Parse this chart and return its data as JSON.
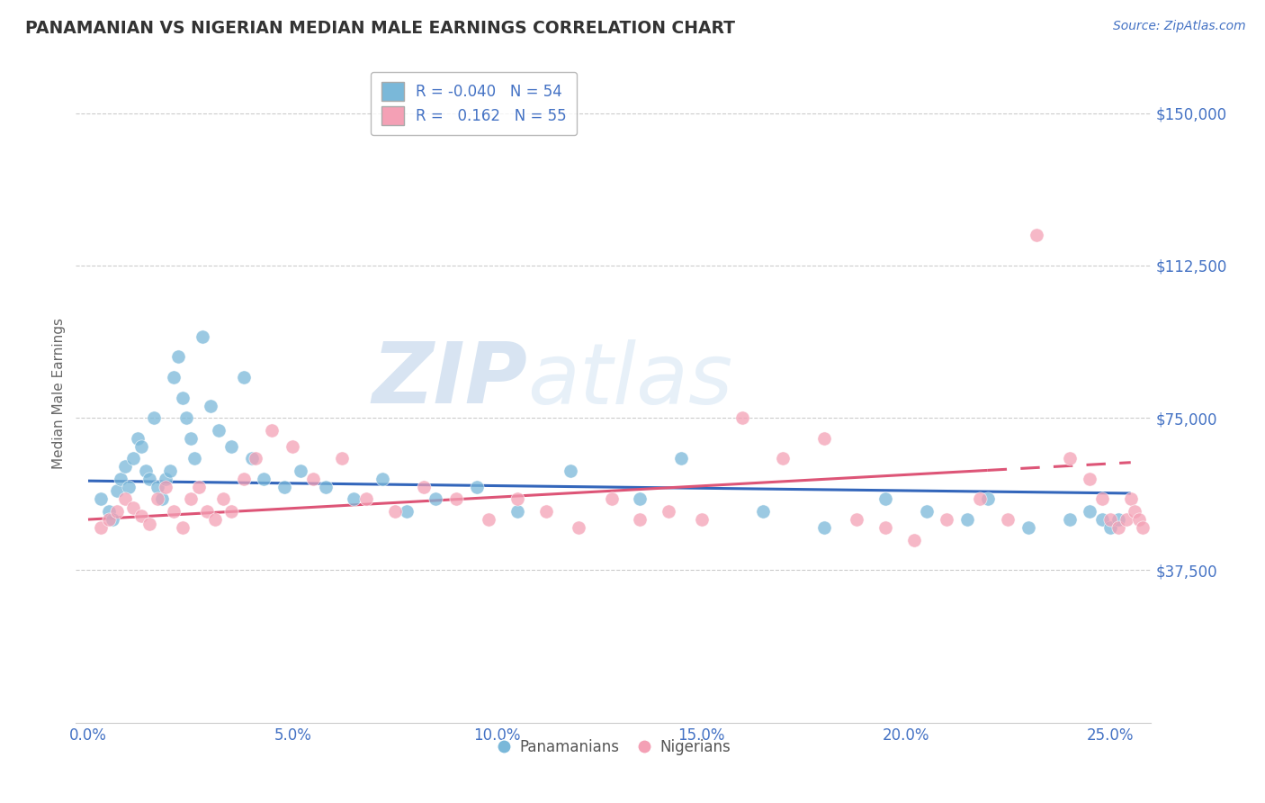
{
  "title": "PANAMANIAN VS NIGERIAN MEDIAN MALE EARNINGS CORRELATION CHART",
  "source": "Source: ZipAtlas.com",
  "xlabel_ticks": [
    "0.0%",
    "5.0%",
    "10.0%",
    "15.0%",
    "20.0%",
    "25.0%"
  ],
  "xlabel_vals": [
    0.0,
    5.0,
    10.0,
    15.0,
    20.0,
    25.0
  ],
  "ylabel": "Median Male Earnings",
  "yticks": [
    0,
    37500,
    75000,
    112500,
    150000
  ],
  "ytick_labels": [
    "",
    "$37,500",
    "$75,000",
    "$112,500",
    "$150,000"
  ],
  "ylim": [
    0,
    162000
  ],
  "xlim": [
    -0.3,
    26.0
  ],
  "legend_label1": "Panamanians",
  "legend_label2": "Nigerians",
  "R1": -0.04,
  "N1": 54,
  "R2": 0.162,
  "N2": 55,
  "color_blue": "#7ab8d9",
  "color_pink": "#f4a0b5",
  "line_color_blue": "#3366bb",
  "line_color_pink": "#dd5577",
  "background_color": "#ffffff",
  "title_color": "#333333",
  "axis_label_color": "#4472c4",
  "watermark_color": "#ccdcee",
  "blue_points_x": [
    0.3,
    0.5,
    0.6,
    0.7,
    0.8,
    0.9,
    1.0,
    1.1,
    1.2,
    1.3,
    1.4,
    1.5,
    1.6,
    1.7,
    1.8,
    1.9,
    2.0,
    2.1,
    2.2,
    2.3,
    2.4,
    2.5,
    2.6,
    2.8,
    3.0,
    3.2,
    3.5,
    3.8,
    4.0,
    4.3,
    4.8,
    5.2,
    5.8,
    6.5,
    7.2,
    7.8,
    8.5,
    9.5,
    10.5,
    11.8,
    13.5,
    14.5,
    16.5,
    18.0,
    19.5,
    20.5,
    21.5,
    22.0,
    23.0,
    24.0,
    24.5,
    24.8,
    25.0,
    25.2
  ],
  "blue_points_y": [
    55000,
    52000,
    50000,
    57000,
    60000,
    63000,
    58000,
    65000,
    70000,
    68000,
    62000,
    60000,
    75000,
    58000,
    55000,
    60000,
    62000,
    85000,
    90000,
    80000,
    75000,
    70000,
    65000,
    95000,
    78000,
    72000,
    68000,
    85000,
    65000,
    60000,
    58000,
    62000,
    58000,
    55000,
    60000,
    52000,
    55000,
    58000,
    52000,
    62000,
    55000,
    65000,
    52000,
    48000,
    55000,
    52000,
    50000,
    55000,
    48000,
    50000,
    52000,
    50000,
    48000,
    50000
  ],
  "pink_points_x": [
    0.3,
    0.5,
    0.7,
    0.9,
    1.1,
    1.3,
    1.5,
    1.7,
    1.9,
    2.1,
    2.3,
    2.5,
    2.7,
    2.9,
    3.1,
    3.3,
    3.5,
    3.8,
    4.1,
    4.5,
    5.0,
    5.5,
    6.2,
    6.8,
    7.5,
    8.2,
    9.0,
    9.8,
    10.5,
    11.2,
    12.0,
    12.8,
    13.5,
    14.2,
    15.0,
    16.0,
    17.0,
    18.0,
    18.8,
    19.5,
    20.2,
    21.0,
    21.8,
    22.5,
    23.2,
    24.0,
    24.5,
    24.8,
    25.0,
    25.2,
    25.4,
    25.5,
    25.6,
    25.7,
    25.8
  ],
  "pink_points_y": [
    48000,
    50000,
    52000,
    55000,
    53000,
    51000,
    49000,
    55000,
    58000,
    52000,
    48000,
    55000,
    58000,
    52000,
    50000,
    55000,
    52000,
    60000,
    65000,
    72000,
    68000,
    60000,
    65000,
    55000,
    52000,
    58000,
    55000,
    50000,
    55000,
    52000,
    48000,
    55000,
    50000,
    52000,
    50000,
    75000,
    65000,
    70000,
    50000,
    48000,
    45000,
    50000,
    55000,
    50000,
    120000,
    65000,
    60000,
    55000,
    50000,
    48000,
    50000,
    55000,
    52000,
    50000,
    48000
  ]
}
